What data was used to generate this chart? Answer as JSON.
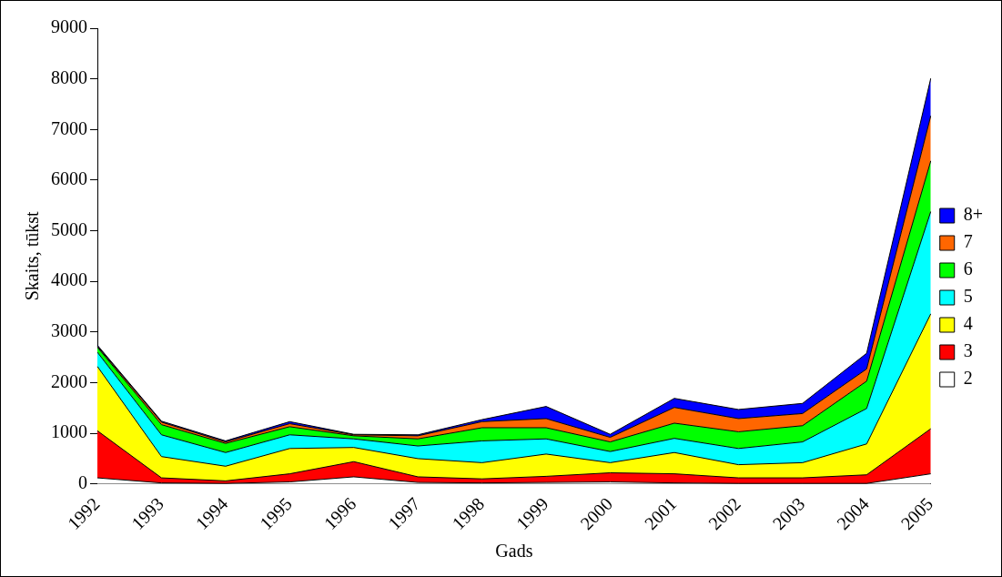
{
  "chart_data": {
    "type": "area",
    "stacked": true,
    "xlabel": "Gads",
    "ylabel": "Skaits, tūkst",
    "legend": "right",
    "grid": false,
    "categories": [
      "1992",
      "1993",
      "1994",
      "1995",
      "1996",
      "1997",
      "1998",
      "1999",
      "2000",
      "2001",
      "2002",
      "2003",
      "2004",
      "2005"
    ],
    "ylim": [
      0,
      9000
    ],
    "yticks": [
      0,
      1000,
      2000,
      3000,
      4000,
      5000,
      6000,
      7000,
      8000,
      9000
    ],
    "series": [
      {
        "name": "2",
        "color": "#ffffff",
        "values": [
          120,
          20,
          10,
          40,
          140,
          30,
          20,
          30,
          40,
          20,
          10,
          10,
          10,
          200
        ]
      },
      {
        "name": "3",
        "color": "#ff0000",
        "values": [
          930,
          100,
          50,
          160,
          300,
          110,
          80,
          120,
          180,
          180,
          110,
          110,
          170,
          890
        ]
      },
      {
        "name": "4",
        "color": "#ffff00",
        "values": [
          1270,
          420,
          290,
          500,
          280,
          360,
          320,
          440,
          200,
          420,
          260,
          300,
          610,
          2270
        ]
      },
      {
        "name": "5",
        "color": "#00ffff",
        "values": [
          280,
          430,
          270,
          270,
          170,
          250,
          430,
          300,
          220,
          280,
          320,
          410,
          700,
          2020
        ]
      },
      {
        "name": "6",
        "color": "#00ff00",
        "values": [
          100,
          200,
          180,
          160,
          60,
          140,
          260,
          220,
          190,
          300,
          330,
          320,
          540,
          1000
        ]
      },
      {
        "name": "7",
        "color": "#ff6600",
        "values": [
          20,
          50,
          30,
          60,
          20,
          60,
          120,
          180,
          90,
          310,
          260,
          240,
          240,
          890
        ]
      },
      {
        "name": "8+",
        "color": "#0000ff",
        "values": [
          20,
          20,
          20,
          40,
          10,
          20,
          40,
          240,
          60,
          180,
          180,
          200,
          310,
          740
        ]
      }
    ]
  }
}
